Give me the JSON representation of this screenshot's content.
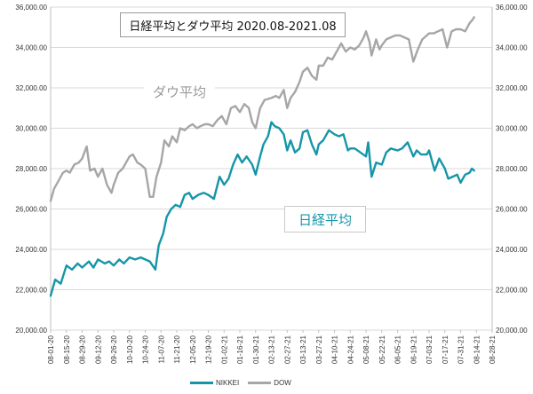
{
  "chart_data": {
    "type": "line",
    "title": "日経平均とダウ平均 2020.08-2021.08",
    "ylim": [
      20000,
      36000
    ],
    "y_ticks": [
      "20,000.00",
      "22,000.00",
      "24,000.00",
      "26,000.00",
      "28,000.00",
      "30,000.00",
      "32,000.00",
      "34,000.00",
      "36,000.00"
    ],
    "y_tick_values": [
      20000,
      22000,
      24000,
      26000,
      28000,
      30000,
      32000,
      34000,
      36000
    ],
    "dual_axis": "same scale on left and right",
    "x_ticks": [
      "08-01-20",
      "08-15-20",
      "08-29-20",
      "09-12-20",
      "09-26-20",
      "10-10-20",
      "10-24-20",
      "11-07-20",
      "11-21-20",
      "12-05-20",
      "12-19-20",
      "01-02-21",
      "01-16-21",
      "01-30-21",
      "02-13-21",
      "02-27-21",
      "03-13-21",
      "03-27-21",
      "04-10-21",
      "04-24-21",
      "05-08-21",
      "05-22-21",
      "06-05-21",
      "06-19-21",
      "07-03-21",
      "07-17-21",
      "07-31-21",
      "08-14-21",
      "08-28-21"
    ],
    "grid": "horizontal",
    "legend_position": "bottom",
    "series": [
      {
        "name": "NIKKEI",
        "color": "#1596a8",
        "points": [
          [
            "08-01-20",
            21700
          ],
          [
            "08-05-20",
            22500
          ],
          [
            "08-10-20",
            22300
          ],
          [
            "08-15-20",
            23200
          ],
          [
            "08-20-20",
            23000
          ],
          [
            "08-25-20",
            23300
          ],
          [
            "08-29-20",
            23100
          ],
          [
            "09-04-20",
            23400
          ],
          [
            "09-08-20",
            23100
          ],
          [
            "09-12-20",
            23500
          ],
          [
            "09-18-20",
            23300
          ],
          [
            "09-22-20",
            23400
          ],
          [
            "09-26-20",
            23200
          ],
          [
            "10-01-20",
            23500
          ],
          [
            "10-05-20",
            23300
          ],
          [
            "10-10-20",
            23600
          ],
          [
            "10-15-20",
            23500
          ],
          [
            "10-20-20",
            23600
          ],
          [
            "10-24-20",
            23500
          ],
          [
            "10-28-20",
            23400
          ],
          [
            "11-02-20",
            23000
          ],
          [
            "11-05-20",
            24200
          ],
          [
            "11-09-20",
            24800
          ],
          [
            "11-12-20",
            25600
          ],
          [
            "11-16-20",
            26000
          ],
          [
            "11-20-20",
            26200
          ],
          [
            "11-24-20",
            26100
          ],
          [
            "11-28-20",
            26700
          ],
          [
            "12-02-20",
            26800
          ],
          [
            "12-05-20",
            26500
          ],
          [
            "12-10-20",
            26700
          ],
          [
            "12-15-20",
            26800
          ],
          [
            "12-19-20",
            26700
          ],
          [
            "12-24-20",
            26500
          ],
          [
            "12-29-20",
            27600
          ],
          [
            "01-02-21",
            27200
          ],
          [
            "01-06-21",
            27500
          ],
          [
            "01-10-21",
            28200
          ],
          [
            "01-14-21",
            28700
          ],
          [
            "01-18-21",
            28300
          ],
          [
            "01-22-21",
            28600
          ],
          [
            "01-27-21",
            28200
          ],
          [
            "01-30-21",
            27700
          ],
          [
            "02-03-21",
            28600
          ],
          [
            "02-06-21",
            29200
          ],
          [
            "02-10-21",
            29600
          ],
          [
            "02-13-21",
            30300
          ],
          [
            "02-16-21",
            30100
          ],
          [
            "02-20-21",
            30000
          ],
          [
            "02-24-21",
            29700
          ],
          [
            "02-27-21",
            28900
          ],
          [
            "03-02-21",
            29400
          ],
          [
            "03-06-21",
            28800
          ],
          [
            "03-10-21",
            29000
          ],
          [
            "03-13-21",
            29800
          ],
          [
            "03-17-21",
            29900
          ],
          [
            "03-21-21",
            29200
          ],
          [
            "03-25-21",
            28700
          ],
          [
            "03-27-21",
            29200
          ],
          [
            "03-31-21",
            29400
          ],
          [
            "04-05-21",
            29900
          ],
          [
            "04-10-21",
            29700
          ],
          [
            "04-14-21",
            29600
          ],
          [
            "04-18-21",
            29700
          ],
          [
            "04-22-21",
            28900
          ],
          [
            "04-24-21",
            29000
          ],
          [
            "04-28-21",
            29000
          ],
          [
            "05-03-21",
            28800
          ],
          [
            "05-08-21",
            28600
          ],
          [
            "05-10-21",
            29300
          ],
          [
            "05-13-21",
            27600
          ],
          [
            "05-17-21",
            28300
          ],
          [
            "05-22-21",
            28200
          ],
          [
            "05-26-21",
            28800
          ],
          [
            "05-30-21",
            29000
          ],
          [
            "06-05-21",
            28900
          ],
          [
            "06-09-21",
            29000
          ],
          [
            "06-14-21",
            29300
          ],
          [
            "06-19-21",
            28600
          ],
          [
            "06-22-21",
            28900
          ],
          [
            "06-26-21",
            28700
          ],
          [
            "07-01-21",
            28700
          ],
          [
            "07-03-21",
            28900
          ],
          [
            "07-08-21",
            27900
          ],
          [
            "07-12-21",
            28500
          ],
          [
            "07-17-21",
            28000
          ],
          [
            "07-20-21",
            27500
          ],
          [
            "07-24-21",
            27600
          ],
          [
            "07-28-21",
            27700
          ],
          [
            "07-31-21",
            27300
          ],
          [
            "08-04-21",
            27700
          ],
          [
            "08-08-21",
            27800
          ],
          [
            "08-10-21",
            28000
          ],
          [
            "08-12-21",
            27900
          ]
        ]
      },
      {
        "name": "DOW",
        "color": "#a6a6a6",
        "points": [
          [
            "08-01-20",
            26400
          ],
          [
            "08-04-20",
            27000
          ],
          [
            "08-08-20",
            27400
          ],
          [
            "08-12-20",
            27800
          ],
          [
            "08-15-20",
            27900
          ],
          [
            "08-18-20",
            27800
          ],
          [
            "08-22-20",
            28200
          ],
          [
            "08-26-20",
            28300
          ],
          [
            "08-29-20",
            28500
          ],
          [
            "09-02-20",
            29100
          ],
          [
            "09-05-20",
            27900
          ],
          [
            "09-09-20",
            28000
          ],
          [
            "09-12-20",
            27600
          ],
          [
            "09-16-20",
            28000
          ],
          [
            "09-20-20",
            27200
          ],
          [
            "09-24-20",
            26800
          ],
          [
            "09-26-20",
            27200
          ],
          [
            "09-30-20",
            27800
          ],
          [
            "10-04-20",
            28000
          ],
          [
            "10-08-20",
            28400
          ],
          [
            "10-10-20",
            28600
          ],
          [
            "10-13-20",
            28700
          ],
          [
            "10-17-20",
            28300
          ],
          [
            "10-20-20",
            28200
          ],
          [
            "10-24-20",
            28000
          ],
          [
            "10-28-20",
            26600
          ],
          [
            "10-31-20",
            26600
          ],
          [
            "11-03-20",
            27600
          ],
          [
            "11-07-20",
            28300
          ],
          [
            "11-10-20",
            29400
          ],
          [
            "11-14-20",
            29100
          ],
          [
            "11-17-20",
            29600
          ],
          [
            "11-21-20",
            29300
          ],
          [
            "11-24-20",
            30000
          ],
          [
            "11-28-20",
            29900
          ],
          [
            "12-02-20",
            30100
          ],
          [
            "12-05-20",
            30200
          ],
          [
            "12-09-20",
            30000
          ],
          [
            "12-12-20",
            30100
          ],
          [
            "12-16-20",
            30200
          ],
          [
            "12-19-20",
            30200
          ],
          [
            "12-23-20",
            30100
          ],
          [
            "12-27-20",
            30400
          ],
          [
            "12-31-20",
            30600
          ],
          [
            "01-04-21",
            30200
          ],
          [
            "01-08-21",
            31000
          ],
          [
            "01-12-21",
            31100
          ],
          [
            "01-16-21",
            30800
          ],
          [
            "01-20-21",
            31200
          ],
          [
            "01-24-21",
            31000
          ],
          [
            "01-27-21",
            30300
          ],
          [
            "01-30-21",
            30000
          ],
          [
            "02-03-21",
            31000
          ],
          [
            "02-07-21",
            31400
          ],
          [
            "02-13-21",
            31500
          ],
          [
            "02-17-21",
            31600
          ],
          [
            "02-20-21",
            31500
          ],
          [
            "02-24-21",
            31900
          ],
          [
            "02-27-21",
            31000
          ],
          [
            "03-02-21",
            31500
          ],
          [
            "03-06-21",
            31800
          ],
          [
            "03-10-21",
            32300
          ],
          [
            "03-13-21",
            32800
          ],
          [
            "03-17-21",
            33000
          ],
          [
            "03-21-21",
            32600
          ],
          [
            "03-25-21",
            32400
          ],
          [
            "03-27-21",
            33100
          ],
          [
            "03-31-21",
            33100
          ],
          [
            "04-04-21",
            33500
          ],
          [
            "04-08-21",
            33400
          ],
          [
            "04-12-21",
            33800
          ],
          [
            "04-16-21",
            34200
          ],
          [
            "04-20-21",
            33800
          ],
          [
            "04-24-21",
            34000
          ],
          [
            "04-28-21",
            33900
          ],
          [
            "05-02-21",
            34100
          ],
          [
            "05-06-21",
            34500
          ],
          [
            "05-08-21",
            34800
          ],
          [
            "05-11-21",
            34300
          ],
          [
            "05-13-21",
            33600
          ],
          [
            "05-17-21",
            34400
          ],
          [
            "05-20-21",
            33900
          ],
          [
            "05-22-21",
            34100
          ],
          [
            "05-26-21",
            34400
          ],
          [
            "05-30-21",
            34500
          ],
          [
            "06-03-21",
            34600
          ],
          [
            "06-07-21",
            34600
          ],
          [
            "06-11-21",
            34500
          ],
          [
            "06-15-21",
            34400
          ],
          [
            "06-19-21",
            33300
          ],
          [
            "06-23-21",
            33900
          ],
          [
            "06-27-21",
            34400
          ],
          [
            "07-01-21",
            34600
          ],
          [
            "07-03-21",
            34700
          ],
          [
            "07-07-21",
            34700
          ],
          [
            "07-11-21",
            34800
          ],
          [
            "07-15-21",
            34900
          ],
          [
            "07-19-21",
            34000
          ],
          [
            "07-23-21",
            34800
          ],
          [
            "07-27-21",
            34900
          ],
          [
            "07-31-21",
            34900
          ],
          [
            "08-04-21",
            34800
          ],
          [
            "08-08-21",
            35200
          ],
          [
            "08-11-21",
            35400
          ],
          [
            "08-12-21",
            35500
          ]
        ]
      }
    ],
    "annotations": [
      "ダウ平均",
      "日経平均"
    ]
  }
}
